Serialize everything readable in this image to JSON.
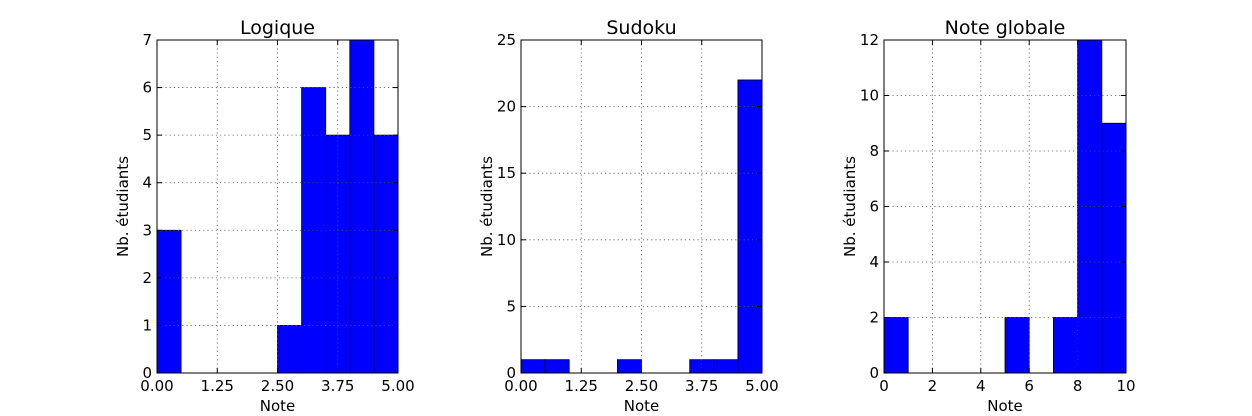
{
  "chart_data": [
    {
      "type": "bar",
      "title": "Logique",
      "xlabel": "Note",
      "ylabel": "Nb. étudiants",
      "xlim": [
        0,
        5
      ],
      "ylim": [
        0,
        7
      ],
      "xticks": [
        "0.00",
        "1.25",
        "2.50",
        "3.75",
        "5.00"
      ],
      "yticks": [
        "0",
        "1",
        "2",
        "3",
        "4",
        "5",
        "6",
        "7"
      ],
      "bins": [
        [
          0,
          0.5
        ],
        [
          2.5,
          3.0
        ],
        [
          3.0,
          3.5
        ],
        [
          3.5,
          4.0
        ],
        [
          4.0,
          4.5
        ],
        [
          4.5,
          5.0
        ]
      ],
      "values": [
        3,
        1,
        6,
        5,
        7,
        5
      ],
      "grid": true,
      "color": "#0000ff"
    },
    {
      "type": "bar",
      "title": "Sudoku",
      "xlabel": "Note",
      "ylabel": "Nb. étudiants",
      "xlim": [
        0,
        5
      ],
      "ylim": [
        0,
        25
      ],
      "xticks": [
        "0.00",
        "1.25",
        "2.50",
        "3.75",
        "5.00"
      ],
      "yticks": [
        "0",
        "5",
        "10",
        "15",
        "20",
        "25"
      ],
      "bins": [
        [
          0,
          0.5
        ],
        [
          0.5,
          1.0
        ],
        [
          2.0,
          2.5
        ],
        [
          3.5,
          4.0
        ],
        [
          4.0,
          4.5
        ],
        [
          4.5,
          5.0
        ]
      ],
      "values": [
        1,
        1,
        1,
        1,
        1,
        22
      ],
      "grid": true,
      "color": "#0000ff"
    },
    {
      "type": "bar",
      "title": "Note globale",
      "xlabel": "Note",
      "ylabel": "Nb. étudiants",
      "xlim": [
        0,
        10
      ],
      "ylim": [
        0,
        12
      ],
      "xticks": [
        "0",
        "2",
        "4",
        "6",
        "8",
        "10"
      ],
      "yticks": [
        "0",
        "2",
        "4",
        "6",
        "8",
        "10",
        "12"
      ],
      "bins": [
        [
          0,
          1
        ],
        [
          5,
          6
        ],
        [
          7,
          8
        ],
        [
          8,
          9
        ],
        [
          9,
          10
        ]
      ],
      "values": [
        2,
        2,
        2,
        12,
        9
      ],
      "grid": true,
      "color": "#0000ff"
    }
  ]
}
